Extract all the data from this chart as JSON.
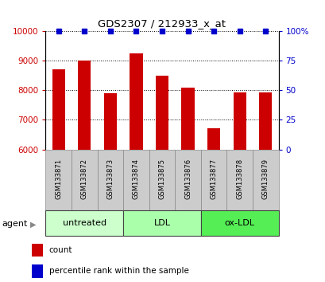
{
  "title": "GDS2307 / 212933_x_at",
  "samples": [
    "GSM133871",
    "GSM133872",
    "GSM133873",
    "GSM133874",
    "GSM133875",
    "GSM133876",
    "GSM133877",
    "GSM133878",
    "GSM133879"
  ],
  "counts": [
    8720,
    9000,
    7900,
    9250,
    8500,
    8100,
    6720,
    7920,
    7920
  ],
  "percentiles": [
    100,
    100,
    100,
    100,
    100,
    100,
    100,
    100,
    100
  ],
  "bar_color": "#cc0000",
  "dot_color": "#0000cc",
  "ylim_left": [
    6000,
    10000
  ],
  "ylim_right": [
    0,
    100
  ],
  "yticks_left": [
    6000,
    7000,
    8000,
    9000,
    10000
  ],
  "yticks_right": [
    0,
    25,
    50,
    75,
    100
  ],
  "groups": [
    {
      "label": "untreated",
      "start": 0,
      "end": 3,
      "color": "#ccffcc"
    },
    {
      "label": "LDL",
      "start": 3,
      "end": 6,
      "color": "#aaffaa"
    },
    {
      "label": "ox-LDL",
      "start": 6,
      "end": 9,
      "color": "#55ee55"
    }
  ],
  "agent_label": "agent",
  "legend_count_label": "count",
  "legend_pct_label": "percentile rank within the sample",
  "background_color": "#ffffff",
  "tick_area_color": "#cccccc",
  "bar_width": 0.5
}
